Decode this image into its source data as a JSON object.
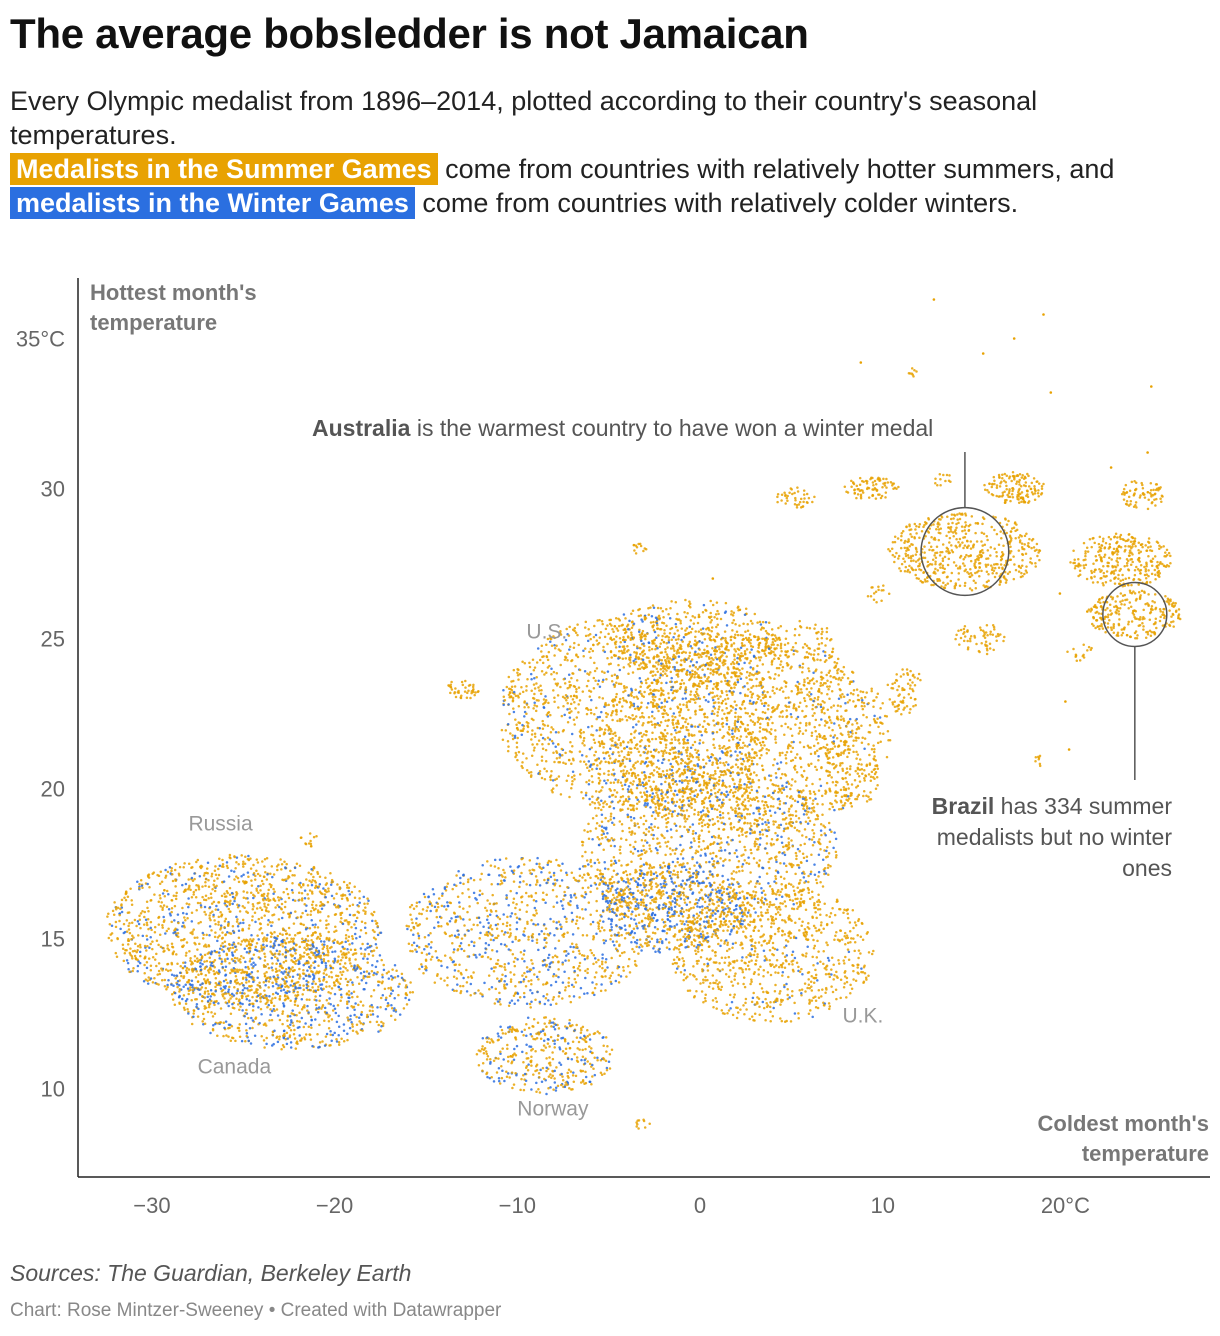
{
  "title": "The average bobsledder is not Jamaican",
  "subtitle": {
    "line1": "Every Olympic medalist from 1896–2014, plotted according to their country's seasonal temperatures.",
    "summer_highlight": "Medalists in the Summer Games",
    "line2": " come from countries with relatively hotter summers, and",
    "winter_highlight": "medalists in the Winter Games",
    "line3": " come from countries with relatively colder winters."
  },
  "colors": {
    "summer": "#e8a202",
    "winter": "#2b6fe0",
    "axis": "#333333",
    "text": "#333333",
    "muted": "#888888"
  },
  "chart_data": {
    "type": "scatter",
    "title": "The average bobsledder is not Jamaican",
    "xlabel": "Coldest month's temperature",
    "ylabel": "Hottest month's temperature",
    "xlim": [
      -34,
      28
    ],
    "ylim": [
      7,
      37
    ],
    "x_ticks": [
      -30,
      -20,
      -10,
      0,
      10,
      20
    ],
    "x_tick_labels": [
      "−30",
      "−20",
      "−10",
      "0",
      "10",
      "20°C"
    ],
    "y_ticks": [
      10,
      15,
      20,
      25,
      30,
      35
    ],
    "y_tick_labels": [
      "10",
      "15",
      "20",
      "25",
      "30",
      "35°C"
    ],
    "series": [
      {
        "name": "Summer Games medalists",
        "color": "#e8a202"
      },
      {
        "name": "Winter Games medalists",
        "color": "#2b6fe0"
      }
    ],
    "clusters": [
      {
        "cx": -25,
        "cy": 15.3,
        "rx": 7.6,
        "ry": 2.5,
        "n": 1500,
        "winter": 0.2
      },
      {
        "cx": -22.3,
        "cy": 13.2,
        "rx": 6.6,
        "ry": 1.9,
        "n": 950,
        "winter": 0.4
      },
      {
        "cx": -9.5,
        "cy": 15.2,
        "rx": 6.8,
        "ry": 2.5,
        "n": 950,
        "winter": 0.35
      },
      {
        "cx": -8.5,
        "cy": 11.1,
        "rx": 3.8,
        "ry": 1.3,
        "n": 380,
        "winter": 0.28
      },
      {
        "cx": -3.5,
        "cy": 22.5,
        "rx": 7.6,
        "ry": 3.3,
        "n": 1500,
        "winter": 0.13
      },
      {
        "cx": 2.5,
        "cy": 21.8,
        "rx": 8.0,
        "ry": 3.3,
        "n": 1400,
        "winter": 0.08
      },
      {
        "cx": 0.5,
        "cy": 18.0,
        "rx": 7.0,
        "ry": 2.8,
        "n": 1300,
        "winter": 0.22
      },
      {
        "cx": -1.5,
        "cy": 16.0,
        "rx": 4.0,
        "ry": 1.5,
        "n": 500,
        "winter": 0.5
      },
      {
        "cx": 4.0,
        "cy": 14.5,
        "rx": 5.6,
        "ry": 2.3,
        "n": 800,
        "winter": 0.06
      },
      {
        "cx": -0.5,
        "cy": 25.0,
        "rx": 4.7,
        "ry": 1.3,
        "n": 420,
        "winter": 0.1
      },
      {
        "cx": 5.5,
        "cy": 24.8,
        "rx": 2.0,
        "ry": 0.8,
        "n": 80,
        "winter": 0.0
      },
      {
        "cx": 8.2,
        "cy": 20.5,
        "rx": 1.6,
        "ry": 1.3,
        "n": 90,
        "winter": 0.0
      },
      {
        "cx": 7.0,
        "cy": 22.5,
        "rx": 2.0,
        "ry": 1.5,
        "n": 120,
        "winter": 0.02
      },
      {
        "cx": 14.5,
        "cy": 27.9,
        "rx": 4.2,
        "ry": 1.3,
        "n": 520,
        "winter": 0.0
      },
      {
        "cx": 23.0,
        "cy": 27.6,
        "rx": 2.8,
        "ry": 0.9,
        "n": 300,
        "winter": 0.0
      },
      {
        "cx": 23.8,
        "cy": 25.8,
        "rx": 2.6,
        "ry": 0.8,
        "n": 240,
        "winter": 0.0
      },
      {
        "cx": 17.2,
        "cy": 30.0,
        "rx": 1.7,
        "ry": 0.55,
        "n": 140,
        "winter": 0.0
      },
      {
        "cx": 9.4,
        "cy": 30.0,
        "rx": 1.5,
        "ry": 0.4,
        "n": 80,
        "winter": 0.0
      },
      {
        "cx": 5.2,
        "cy": 29.7,
        "rx": 1.1,
        "ry": 0.35,
        "n": 40,
        "winter": 0.0
      },
      {
        "cx": 24.2,
        "cy": 29.8,
        "rx": 1.2,
        "ry": 0.5,
        "n": 70,
        "winter": 0.0
      },
      {
        "cx": 15.3,
        "cy": 25.0,
        "rx": 1.4,
        "ry": 0.55,
        "n": 60,
        "winter": 0.0
      },
      {
        "cx": 11.2,
        "cy": 23.6,
        "rx": 1.0,
        "ry": 0.4,
        "n": 35,
        "winter": 0.0
      },
      {
        "cx": 11.2,
        "cy": 22.8,
        "rx": 0.9,
        "ry": 0.4,
        "n": 30,
        "winter": 0.0
      },
      {
        "cx": -13,
        "cy": 23.3,
        "rx": 0.9,
        "ry": 0.35,
        "n": 40,
        "winter": 0.0
      },
      {
        "cx": 9.7,
        "cy": 26.5,
        "rx": 0.7,
        "ry": 0.3,
        "n": 15,
        "winter": 0.0
      },
      {
        "cx": 20.8,
        "cy": 24.5,
        "rx": 0.8,
        "ry": 0.3,
        "n": 15,
        "winter": 0.0
      },
      {
        "cx": -3.2,
        "cy": 28.0,
        "rx": 0.5,
        "ry": 0.22,
        "n": 12,
        "winter": 0.0
      },
      {
        "cx": -21.5,
        "cy": 18.3,
        "rx": 0.6,
        "ry": 0.25,
        "n": 12,
        "winter": 0.0
      },
      {
        "cx": -3.1,
        "cy": 8.8,
        "rx": 0.5,
        "ry": 0.2,
        "n": 10,
        "winter": 0.0
      },
      {
        "cx": 13.3,
        "cy": 30.3,
        "rx": 0.5,
        "ry": 0.25,
        "n": 12,
        "winter": 0.0
      },
      {
        "cx": 11.6,
        "cy": 33.9,
        "rx": 0.4,
        "ry": 0.2,
        "n": 8,
        "winter": 0.0
      },
      {
        "cx": 18.5,
        "cy": 20.9,
        "rx": 0.4,
        "ry": 0.2,
        "n": 8,
        "winter": 0.0
      }
    ],
    "singles": [
      [
        12.8,
        36.3
      ],
      [
        15.5,
        34.5
      ],
      [
        17.2,
        35.0
      ],
      [
        18.8,
        35.8
      ],
      [
        8.8,
        34.2
      ],
      [
        19.2,
        33.2
      ],
      [
        24.7,
        33.4
      ],
      [
        24.5,
        31.2
      ],
      [
        22.5,
        30.7
      ],
      [
        0.7,
        27.0
      ],
      [
        20.0,
        22.9
      ],
      [
        21.2,
        25.9
      ],
      [
        20.2,
        21.3
      ],
      [
        19.7,
        26.5
      ]
    ],
    "annotations": {
      "australia_bold": "Australia",
      "australia_rest": " is the warmest country to have won a winter medal",
      "brazil_bold": "Brazil",
      "brazil_rest": " has 334 summer",
      "brazil_line2": "medalists but no winter",
      "brazil_line3": "ones"
    },
    "country_labels": [
      {
        "text": "U.S.",
        "x": -9.5,
        "y": 25.0
      },
      {
        "text": "Russia",
        "x": -28,
        "y": 18.6
      },
      {
        "text": "Canada",
        "x": -27.5,
        "y": 10.5
      },
      {
        "text": "Norway",
        "x": -10,
        "y": 9.1
      },
      {
        "text": "U.K.",
        "x": 7.8,
        "y": 12.2
      }
    ],
    "highlight_circles": [
      {
        "x": 14.5,
        "y": 27.9,
        "r": 2.4
      },
      {
        "x": 23.8,
        "y": 25.8,
        "r": 1.75
      }
    ]
  },
  "footer": {
    "source": "Sources: The Guardian, Berkeley Earth",
    "credit": "Chart: Rose Mintzer-Sweeney • Created with Datawrapper"
  }
}
